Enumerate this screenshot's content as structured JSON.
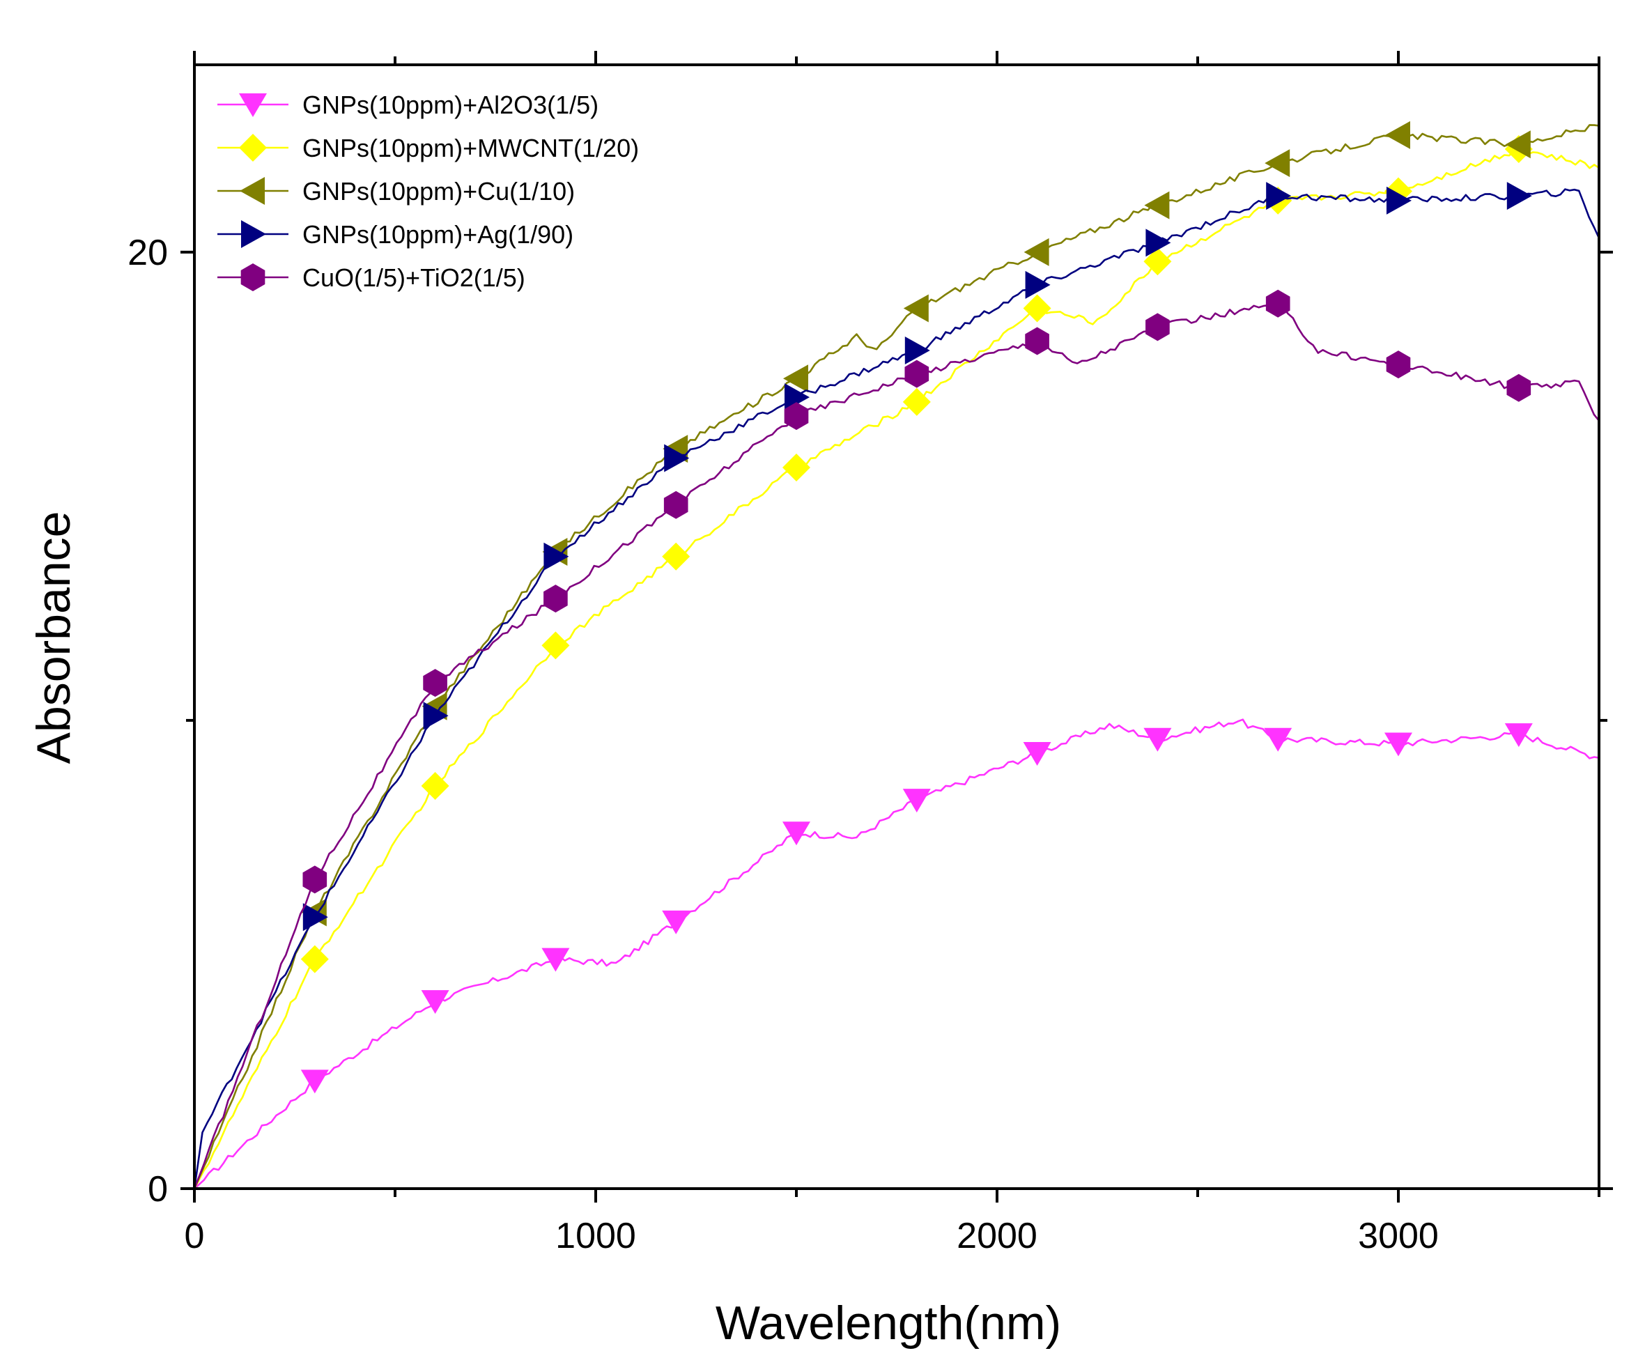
{
  "chart_data": {
    "type": "line",
    "title": "",
    "xlabel": "Wavelength(nm)",
    "ylabel": "Absorbance",
    "xlim": [
      0,
      3500
    ],
    "ylim": [
      0,
      24
    ],
    "x_ticks": [
      0,
      1000,
      2000,
      3000
    ],
    "x_tick_labels": [
      "0",
      "1000",
      "2000",
      "3000"
    ],
    "x_minor_ticks": [
      500,
      1500,
      2500,
      3500
    ],
    "y_ticks": [
      0,
      20
    ],
    "y_tick_labels": [
      "0",
      "20"
    ],
    "y_minor_ticks": [
      10
    ],
    "grid": false,
    "legend_position": "top-left",
    "series": [
      {
        "name": "GNPs(10ppm)+Al2O3(1/5)",
        "color": "#ff33ff",
        "marker": "triangle-down",
        "x": [
          0,
          300,
          600,
          900,
          1050,
          1200,
          1500,
          1650,
          1800,
          2100,
          2280,
          2400,
          2600,
          2700,
          3000,
          3300,
          3500
        ],
        "y": [
          0,
          2.3,
          4.0,
          4.9,
          4.8,
          5.7,
          7.6,
          7.5,
          8.3,
          9.3,
          9.9,
          9.6,
          10.0,
          9.6,
          9.5,
          9.7,
          9.2
        ]
      },
      {
        "name": "GNPs(10ppm)+MWCNT(1/20)",
        "color": "#ffff00",
        "marker": "diamond",
        "x": [
          0,
          300,
          600,
          900,
          1200,
          1500,
          1800,
          2100,
          2250,
          2400,
          2700,
          3000,
          3300,
          3500
        ],
        "y": [
          0,
          4.9,
          8.6,
          11.6,
          13.5,
          15.4,
          16.8,
          18.8,
          18.5,
          19.8,
          21.1,
          21.3,
          22.2,
          21.8
        ]
      },
      {
        "name": "GNPs(10ppm)+Cu(1/10)",
        "color": "#808000",
        "marker": "triangle-left",
        "x": [
          0,
          300,
          600,
          900,
          1200,
          1500,
          1650,
          1700,
          1800,
          2100,
          2400,
          2700,
          3000,
          3300,
          3500
        ],
        "y": [
          0,
          5.9,
          10.3,
          13.6,
          15.8,
          17.3,
          18.2,
          17.9,
          18.8,
          20.0,
          21.0,
          21.9,
          22.5,
          22.3,
          22.7
        ]
      },
      {
        "name": "GNPs(10ppm)+Ag(1/90)",
        "color": "#000080",
        "marker": "triangle-right",
        "x": [
          0,
          20,
          300,
          600,
          900,
          1200,
          1500,
          1800,
          2100,
          2400,
          2700,
          3000,
          3300,
          3450,
          3500
        ],
        "y": [
          0,
          1.2,
          5.8,
          10.1,
          13.5,
          15.6,
          16.9,
          17.9,
          19.3,
          20.2,
          21.2,
          21.1,
          21.2,
          21.3,
          20.3
        ]
      },
      {
        "name": "CuO(1/5)+TiO2(1/5)",
        "color": "#800080",
        "marker": "hexagon",
        "x": [
          0,
          300,
          600,
          900,
          1200,
          1500,
          1800,
          2100,
          2200,
          2400,
          2700,
          2800,
          3000,
          3300,
          3450,
          3500
        ],
        "y": [
          0,
          6.6,
          10.8,
          12.6,
          14.6,
          16.5,
          17.4,
          18.1,
          17.6,
          18.4,
          18.9,
          17.9,
          17.6,
          17.1,
          17.2,
          16.4
        ]
      }
    ]
  }
}
